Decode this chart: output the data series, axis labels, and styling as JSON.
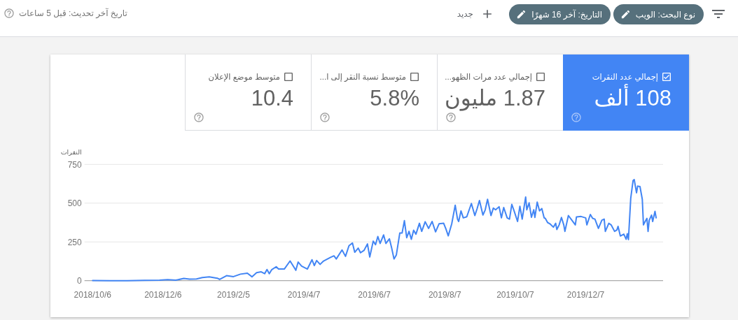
{
  "chart_data": [
    {
      "type": "other",
      "annotations": [
        "نوع البحث: الويب",
        "التاريخ: آخر 16 شهرًا",
        "جديد",
        "تاريخ آخر تحديث: قبل 5 ساعات",
        "إجمالي عدد النقرات",
        "108 ألف",
        "إجمالي عدد مرات الظهو...",
        "1.87 مليون",
        "متوسط نسبة النقر إلى ا...",
        "5.8%",
        "متوسط موضع الإعلان",
        "10.4"
      ]
    },
    {
      "type": "line",
      "ylabel": "النقرات",
      "color": "#4285f4",
      "grid": "y",
      "ylim": [
        0,
        750
      ],
      "yticks": [
        0,
        250,
        500,
        750
      ],
      "xlim": [
        "2018-09-29",
        "2020-02-12"
      ],
      "xticks": [
        {
          "value": "2018-10-06",
          "label": "2018/10/6"
        },
        {
          "value": "2018-12-06",
          "label": "2018/12/6"
        },
        {
          "value": "2019-02-05",
          "label": "2019/2/5"
        },
        {
          "value": "2019-04-07",
          "label": "2019/4/7"
        },
        {
          "value": "2019-06-07",
          "label": "2019/6/7"
        },
        {
          "value": "2019-08-07",
          "label": "2019/8/7"
        },
        {
          "value": "2019-10-07",
          "label": "2019/10/7"
        },
        {
          "value": "2019-12-07",
          "label": "2019/12/7"
        }
      ],
      "x": [
        "2018-10-06",
        "2018-10-21",
        "2018-11-05",
        "2018-11-20",
        "2018-12-03",
        "2018-12-10",
        "2018-12-17",
        "2018-12-24",
        "2018-12-29",
        "2019-01-04",
        "2019-01-09",
        "2019-01-15",
        "2019-01-22",
        "2019-01-24",
        "2019-01-30",
        "2019-02-05",
        "2019-02-11",
        "2019-02-17",
        "2019-02-21",
        "2019-02-25",
        "2019-03-01",
        "2019-03-04",
        "2019-03-06",
        "2019-03-08",
        "2019-03-10",
        "2019-03-14",
        "2019-03-16",
        "2019-03-21",
        "2019-03-26",
        "2019-03-31",
        "2019-04-02",
        "2019-04-05",
        "2019-04-10",
        "2019-04-14",
        "2019-04-16",
        "2019-04-18",
        "2019-04-21",
        "2019-04-24",
        "2019-04-30",
        "2019-05-03",
        "2019-05-05",
        "2019-05-10",
        "2019-05-13",
        "2019-05-16",
        "2019-05-19",
        "2019-05-21",
        "2019-05-24",
        "2019-05-26",
        "2019-05-29",
        "2019-06-01",
        "2019-06-03",
        "2019-06-06",
        "2019-06-08",
        "2019-06-10",
        "2019-06-12",
        "2019-06-15",
        "2019-06-17",
        "2019-06-20",
        "2019-06-22",
        "2019-06-24",
        "2019-06-26",
        "2019-06-29",
        "2019-07-01",
        "2019-07-03",
        "2019-07-05",
        "2019-07-07",
        "2019-07-09",
        "2019-07-11",
        "2019-07-13",
        "2019-07-16",
        "2019-07-18",
        "2019-07-21",
        "2019-07-24",
        "2019-07-27",
        "2019-07-30",
        "2019-08-02",
        "2019-08-06",
        "2019-08-08",
        "2019-08-10",
        "2019-08-13",
        "2019-08-16",
        "2019-08-18",
        "2019-08-19",
        "2019-08-21",
        "2019-08-23",
        "2019-08-26",
        "2019-08-30",
        "2019-09-02",
        "2019-09-04",
        "2019-09-06",
        "2019-09-09",
        "2019-09-11",
        "2019-09-13",
        "2019-09-16",
        "2019-09-18",
        "2019-09-20",
        "2019-09-23",
        "2019-09-25",
        "2019-09-27",
        "2019-09-30",
        "2019-10-02",
        "2019-10-04",
        "2019-10-06",
        "2019-10-09",
        "2019-10-11",
        "2019-10-13",
        "2019-10-16",
        "2019-10-17",
        "2019-10-19",
        "2019-10-21",
        "2019-10-23",
        "2019-10-24",
        "2019-10-26",
        "2019-10-28",
        "2019-10-30",
        "2019-11-01",
        "2019-11-02",
        "2019-11-04",
        "2019-11-06",
        "2019-11-09",
        "2019-11-11",
        "2019-11-12",
        "2019-11-14",
        "2019-11-16",
        "2019-11-18",
        "2019-11-19",
        "2019-11-22",
        "2019-11-25",
        "2019-11-28",
        "2019-11-29",
        "2019-12-03",
        "2019-12-07",
        "2019-12-08",
        "2019-12-11",
        "2019-12-13",
        "2019-12-15",
        "2019-12-18",
        "2019-12-21",
        "2019-12-23",
        "2019-12-24",
        "2019-12-27",
        "2019-12-29",
        "2020-01-01",
        "2020-01-03",
        "2020-01-04",
        "2020-01-06",
        "2020-01-09",
        "2020-01-11",
        "2020-01-12",
        "2020-01-13",
        "2020-01-15",
        "2020-01-17",
        "2020-01-18",
        "2020-01-20",
        "2020-01-21",
        "2020-01-23",
        "2020-01-25",
        "2020-01-26",
        "2020-01-27",
        "2020-01-29",
        "2020-01-30",
        "2020-01-31",
        "2020-02-02",
        "2020-02-03",
        "2020-02-05",
        "2020-02-06"
      ],
      "values": [
        1,
        0,
        0,
        2,
        3,
        6,
        3,
        14,
        10,
        11,
        20,
        25,
        16,
        8,
        32,
        26,
        42,
        48,
        25,
        52,
        57,
        45,
        72,
        45,
        70,
        90,
        75,
        75,
        127,
        67,
        120,
        94,
        75,
        135,
        97,
        130,
        105,
        127,
        150,
        160,
        140,
        198,
        157,
        225,
        243,
        183,
        210,
        180,
        195,
        237,
        153,
        255,
        232,
        285,
        240,
        295,
        240,
        270,
        210,
        140,
        165,
        307,
        307,
        387,
        277,
        318,
        267,
        325,
        300,
        370,
        318,
        380,
        337,
        382,
        315,
        367,
        370,
        333,
        289,
        367,
        487,
        397,
        382,
        450,
        405,
        412,
        498,
        420,
        465,
        517,
        423,
        457,
        525,
        420,
        468,
        457,
        477,
        405,
        472,
        405,
        397,
        492,
        450,
        382,
        480,
        397,
        540,
        457,
        502,
        409,
        457,
        408,
        507,
        450,
        465,
        405,
        402,
        375,
        367,
        345,
        370,
        330,
        360,
        408,
        360,
        318,
        420,
        390,
        360,
        411,
        414,
        405,
        360,
        427,
        402,
        397,
        337,
        390,
        397,
        318,
        370,
        360,
        318,
        327,
        350,
        288,
        300,
        267,
        303,
        265,
        532,
        645,
        652,
        567,
        610,
        607,
        525,
        360,
        375,
        402,
        318,
        390,
        423,
        382,
        447,
        405
      ]
    }
  ]
}
